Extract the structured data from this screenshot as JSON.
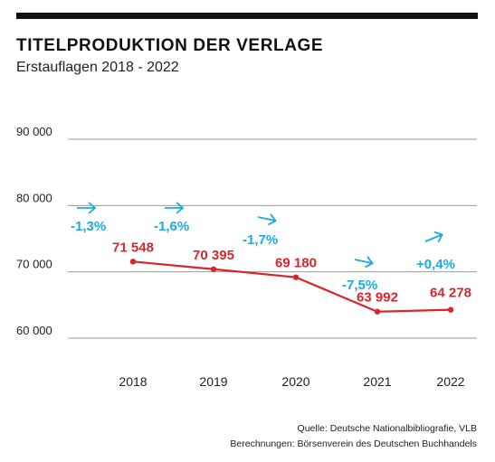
{
  "colors": {
    "line": "#d7262c",
    "change": "#1ca8e0",
    "grid": "#9a9a9a",
    "bar": "#111111"
  },
  "chart_data": {
    "type": "line",
    "title": "TITELPRODUKTION DER VERLAGE",
    "subtitle": "Erstauflagen 2018 - 2022",
    "categories": [
      "2018",
      "2019",
      "2020",
      "2021",
      "2022"
    ],
    "values": [
      71548,
      70395,
      69180,
      63992,
      64278
    ],
    "value_labels": [
      "71 548",
      "70 395",
      "69 180",
      "63 992",
      "64 278"
    ],
    "change_labels": [
      "-1,3%",
      "-1,6%",
      "-1,7%",
      "-7,5%",
      "+0,4%"
    ],
    "y_ticks": [
      60000,
      70000,
      80000,
      90000
    ],
    "y_tick_labels": [
      "60 000",
      "70 000",
      "80 000",
      "90 000"
    ],
    "ylim": [
      60000,
      90000
    ],
    "grid": true
  },
  "source": {
    "line1": "Quelle: Deutsche Nationalbibliografie, VLB",
    "line2": "Berechnungen: Börsenverein des Deutschen Buchhandels"
  }
}
